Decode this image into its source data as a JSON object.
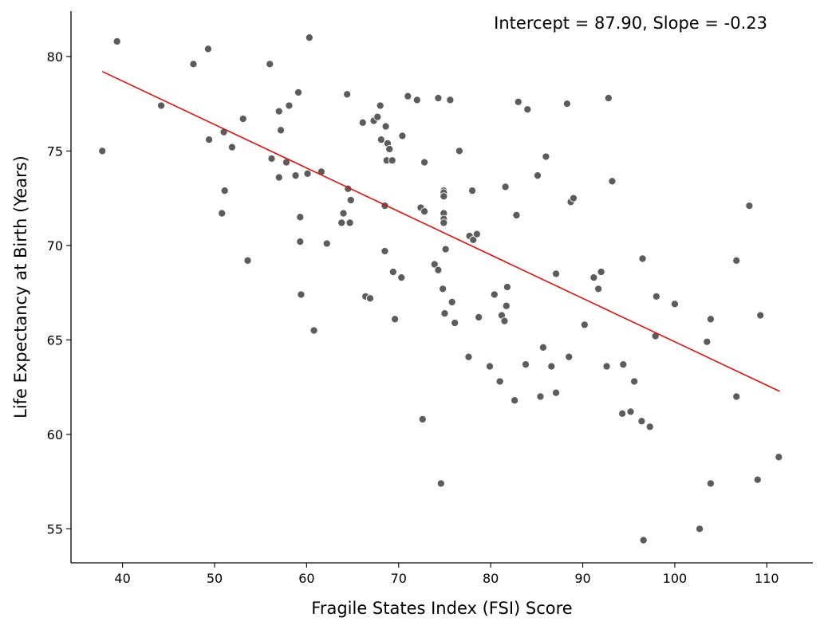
{
  "chart_data": {
    "type": "scatter",
    "title": "",
    "xlabel": "Fragile States Index (FSI) Score",
    "ylabel": "Life Expectancy at Birth (Years)",
    "annotation": "Intercept = 87.90, Slope = -0.23",
    "xlim": [
      34.4,
      115.0
    ],
    "ylim": [
      53.2,
      82.4
    ],
    "xticks": [
      40,
      50,
      60,
      70,
      80,
      90,
      100,
      110
    ],
    "yticks": [
      55,
      60,
      65,
      70,
      75,
      80
    ],
    "grid": false,
    "legend": "none",
    "colors": {
      "points": "#5c5c5c",
      "point_edge": "#ffffff",
      "fit_line": "#e0110e",
      "axes": "#000000"
    },
    "fit_line": {
      "intercept": 87.9,
      "slope": -0.23,
      "x_range": [
        37.8,
        111.4
      ]
    },
    "series": [
      {
        "points": [
          [
            37.8,
            75.0
          ],
          [
            39.4,
            80.8
          ],
          [
            44.2,
            77.4
          ],
          [
            47.7,
            79.6
          ],
          [
            49.3,
            80.4
          ],
          [
            49.4,
            75.6
          ],
          [
            50.8,
            71.7
          ],
          [
            51.0,
            76.0
          ],
          [
            51.1,
            72.9
          ],
          [
            51.9,
            75.2
          ],
          [
            53.1,
            76.7
          ],
          [
            53.6,
            69.2
          ],
          [
            56.0,
            79.6
          ],
          [
            56.2,
            74.6
          ],
          [
            57.0,
            73.6
          ],
          [
            57.0,
            77.1
          ],
          [
            57.2,
            76.1
          ],
          [
            57.8,
            74.4
          ],
          [
            58.1,
            77.4
          ],
          [
            58.8,
            73.7
          ],
          [
            59.1,
            78.1
          ],
          [
            59.3,
            71.5
          ],
          [
            59.3,
            70.2
          ],
          [
            59.4,
            67.4
          ],
          [
            60.1,
            73.8
          ],
          [
            60.3,
            81.0
          ],
          [
            60.8,
            65.5
          ],
          [
            61.6,
            73.9
          ],
          [
            62.2,
            70.1
          ],
          [
            63.8,
            71.2
          ],
          [
            64.0,
            71.7
          ],
          [
            64.4,
            78.0
          ],
          [
            64.5,
            73.0
          ],
          [
            64.7,
            71.2
          ],
          [
            64.8,
            72.4
          ],
          [
            66.1,
            76.5
          ],
          [
            66.4,
            67.3
          ],
          [
            66.9,
            67.2
          ],
          [
            67.3,
            76.6
          ],
          [
            67.7,
            76.8
          ],
          [
            68.0,
            77.4
          ],
          [
            68.1,
            75.6
          ],
          [
            68.5,
            72.1
          ],
          [
            68.5,
            69.7
          ],
          [
            68.6,
            76.3
          ],
          [
            68.7,
            74.5
          ],
          [
            68.8,
            75.4
          ],
          [
            69.0,
            75.1
          ],
          [
            69.3,
            74.5
          ],
          [
            69.4,
            68.6
          ],
          [
            69.6,
            66.1
          ],
          [
            70.3,
            68.3
          ],
          [
            70.4,
            75.8
          ],
          [
            71.0,
            77.9
          ],
          [
            72.0,
            77.7
          ],
          [
            72.4,
            72.0
          ],
          [
            72.6,
            60.8
          ],
          [
            72.8,
            71.8
          ],
          [
            72.8,
            74.4
          ],
          [
            73.9,
            69.0
          ],
          [
            74.3,
            68.7
          ],
          [
            74.3,
            77.8
          ],
          [
            74.6,
            57.4
          ],
          [
            74.8,
            67.7
          ],
          [
            74.9,
            72.9
          ],
          [
            74.9,
            72.8
          ],
          [
            74.9,
            72.6
          ],
          [
            74.9,
            71.7
          ],
          [
            74.9,
            71.4
          ],
          [
            74.9,
            71.2
          ],
          [
            75.0,
            66.4
          ],
          [
            75.1,
            69.8
          ],
          [
            75.6,
            77.7
          ],
          [
            75.8,
            67.0
          ],
          [
            76.1,
            65.9
          ],
          [
            76.6,
            75.0
          ],
          [
            77.6,
            64.1
          ],
          [
            77.7,
            70.5
          ],
          [
            78.0,
            72.9
          ],
          [
            78.1,
            70.3
          ],
          [
            78.5,
            70.6
          ],
          [
            78.7,
            66.2
          ],
          [
            79.9,
            63.6
          ],
          [
            80.4,
            67.4
          ],
          [
            81.0,
            62.8
          ],
          [
            81.2,
            66.3
          ],
          [
            81.5,
            66.0
          ],
          [
            81.6,
            73.1
          ],
          [
            81.7,
            66.8
          ],
          [
            81.8,
            67.8
          ],
          [
            82.6,
            61.8
          ],
          [
            82.8,
            71.6
          ],
          [
            83.0,
            77.6
          ],
          [
            83.8,
            63.7
          ],
          [
            84.0,
            77.2
          ],
          [
            85.1,
            73.7
          ],
          [
            85.4,
            62.0
          ],
          [
            85.7,
            64.6
          ],
          [
            86.0,
            74.7
          ],
          [
            86.6,
            63.6
          ],
          [
            87.1,
            62.2
          ],
          [
            87.1,
            68.5
          ],
          [
            88.3,
            77.5
          ],
          [
            88.5,
            64.1
          ],
          [
            88.7,
            72.3
          ],
          [
            89.0,
            72.5
          ],
          [
            90.2,
            65.8
          ],
          [
            91.2,
            68.3
          ],
          [
            91.7,
            67.7
          ],
          [
            92.0,
            68.6
          ],
          [
            92.6,
            63.6
          ],
          [
            92.8,
            77.8
          ],
          [
            93.2,
            73.4
          ],
          [
            94.3,
            61.1
          ],
          [
            94.4,
            63.7
          ],
          [
            95.2,
            61.2
          ],
          [
            95.6,
            62.8
          ],
          [
            96.4,
            60.7
          ],
          [
            96.5,
            69.3
          ],
          [
            96.6,
            54.4
          ],
          [
            97.3,
            60.4
          ],
          [
            97.9,
            65.2
          ],
          [
            98.0,
            67.3
          ],
          [
            100.0,
            66.9
          ],
          [
            102.7,
            55.0
          ],
          [
            103.5,
            64.9
          ],
          [
            103.9,
            66.1
          ],
          [
            103.9,
            57.4
          ],
          [
            106.7,
            69.2
          ],
          [
            106.7,
            62.0
          ],
          [
            108.1,
            72.1
          ],
          [
            109.0,
            57.6
          ],
          [
            109.3,
            66.3
          ],
          [
            111.3,
            58.8
          ]
        ]
      }
    ]
  }
}
